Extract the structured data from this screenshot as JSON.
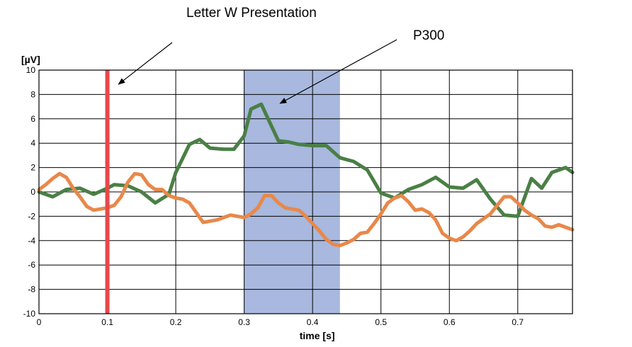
{
  "chart_data": {
    "type": "line",
    "title": "",
    "xlabel": "time [s]",
    "ylabel": "[µV]",
    "xlim": [
      0,
      0.78
    ],
    "ylim": [
      -10,
      10
    ],
    "xticks": [
      0,
      0.1,
      0.2,
      0.3,
      0.4,
      0.5,
      0.6,
      0.7
    ],
    "xtick_labels": [
      "0",
      "0.1",
      "0.2",
      "0.3",
      "0.4",
      "0.5",
      "0.6",
      "0.7"
    ],
    "yticks": [
      -10,
      -8,
      -6,
      -4,
      -2,
      0,
      2,
      4,
      6,
      8,
      10
    ],
    "ytick_labels": [
      "-10",
      "-8",
      "-6",
      "-4",
      "-2",
      "0",
      "2",
      "4",
      "6",
      "8",
      "10"
    ],
    "grid": true,
    "highlight_region": {
      "x": [
        0.3,
        0.44
      ],
      "color": "#a8b8de"
    },
    "marker_line": {
      "x": 0.1,
      "color": "#e8474a"
    },
    "annotations": [
      {
        "text": "Letter W Presentation",
        "target": [
          0.11,
          9.3
        ]
      },
      {
        "text": "P300",
        "target": [
          0.34,
          7.5
        ]
      }
    ],
    "series": [
      {
        "color": "#4a7f45",
        "x": [
          0,
          0.02,
          0.04,
          0.06,
          0.08,
          0.1,
          0.11,
          0.13,
          0.15,
          0.17,
          0.19,
          0.2,
          0.22,
          0.235,
          0.25,
          0.27,
          0.285,
          0.3,
          0.31,
          0.325,
          0.335,
          0.35,
          0.365,
          0.38,
          0.4,
          0.42,
          0.44,
          0.46,
          0.48,
          0.5,
          0.52,
          0.54,
          0.56,
          0.58,
          0.6,
          0.62,
          0.64,
          0.66,
          0.68,
          0.7,
          0.72,
          0.735,
          0.75,
          0.77,
          0.78
        ],
        "values": [
          0,
          -0.4,
          0.2,
          0.3,
          -0.2,
          0.3,
          0.6,
          0.5,
          0.0,
          -0.9,
          -0.2,
          1.6,
          3.9,
          4.3,
          3.6,
          3.5,
          3.5,
          4.6,
          6.8,
          7.2,
          6.0,
          4.2,
          4.1,
          3.9,
          3.8,
          3.8,
          2.8,
          2.5,
          1.8,
          -0.1,
          -0.5,
          0.2,
          0.6,
          1.2,
          0.4,
          0.3,
          1.0,
          -0.6,
          -1.9,
          -2.0,
          1.1,
          0.3,
          1.6,
          2.0,
          1.6
        ]
      },
      {
        "color": "#e8884a",
        "x": [
          0,
          0.01,
          0.02,
          0.03,
          0.04,
          0.05,
          0.06,
          0.07,
          0.08,
          0.09,
          0.1,
          0.11,
          0.12,
          0.13,
          0.14,
          0.15,
          0.16,
          0.17,
          0.18,
          0.19,
          0.2,
          0.21,
          0.22,
          0.23,
          0.24,
          0.25,
          0.26,
          0.27,
          0.28,
          0.29,
          0.3,
          0.31,
          0.32,
          0.33,
          0.34,
          0.35,
          0.36,
          0.37,
          0.38,
          0.39,
          0.4,
          0.41,
          0.42,
          0.43,
          0.44,
          0.45,
          0.46,
          0.47,
          0.48,
          0.49,
          0.5,
          0.51,
          0.52,
          0.53,
          0.54,
          0.55,
          0.56,
          0.57,
          0.58,
          0.59,
          0.6,
          0.61,
          0.62,
          0.63,
          0.64,
          0.65,
          0.66,
          0.67,
          0.68,
          0.69,
          0.7,
          0.71,
          0.72,
          0.73,
          0.74,
          0.75,
          0.76,
          0.77,
          0.78
        ],
        "values": [
          0.2,
          0.6,
          1.1,
          1.5,
          1.2,
          0.3,
          -0.4,
          -1.2,
          -1.5,
          -1.4,
          -1.3,
          -1.1,
          -0.4,
          0.8,
          1.5,
          1.4,
          0.6,
          0.2,
          0.2,
          -0.3,
          -0.5,
          -0.6,
          -0.9,
          -1.7,
          -2.5,
          -2.4,
          -2.3,
          -2.1,
          -1.9,
          -2.0,
          -2.1,
          -1.8,
          -1.3,
          -0.3,
          -0.3,
          -0.9,
          -1.3,
          -1.4,
          -1.5,
          -2.0,
          -2.6,
          -3.2,
          -3.9,
          -4.3,
          -4.4,
          -4.2,
          -3.9,
          -3.4,
          -3.3,
          -2.6,
          -1.8,
          -0.9,
          -0.5,
          -0.3,
          -0.8,
          -1.5,
          -1.4,
          -1.7,
          -2.3,
          -3.4,
          -3.8,
          -4.0,
          -3.7,
          -3.2,
          -2.6,
          -2.2,
          -1.8,
          -1.1,
          -0.4,
          -0.4,
          -0.9,
          -1.5,
          -1.9,
          -2.2,
          -2.8,
          -2.9,
          -2.7,
          -2.9,
          -3.1
        ]
      }
    ]
  }
}
